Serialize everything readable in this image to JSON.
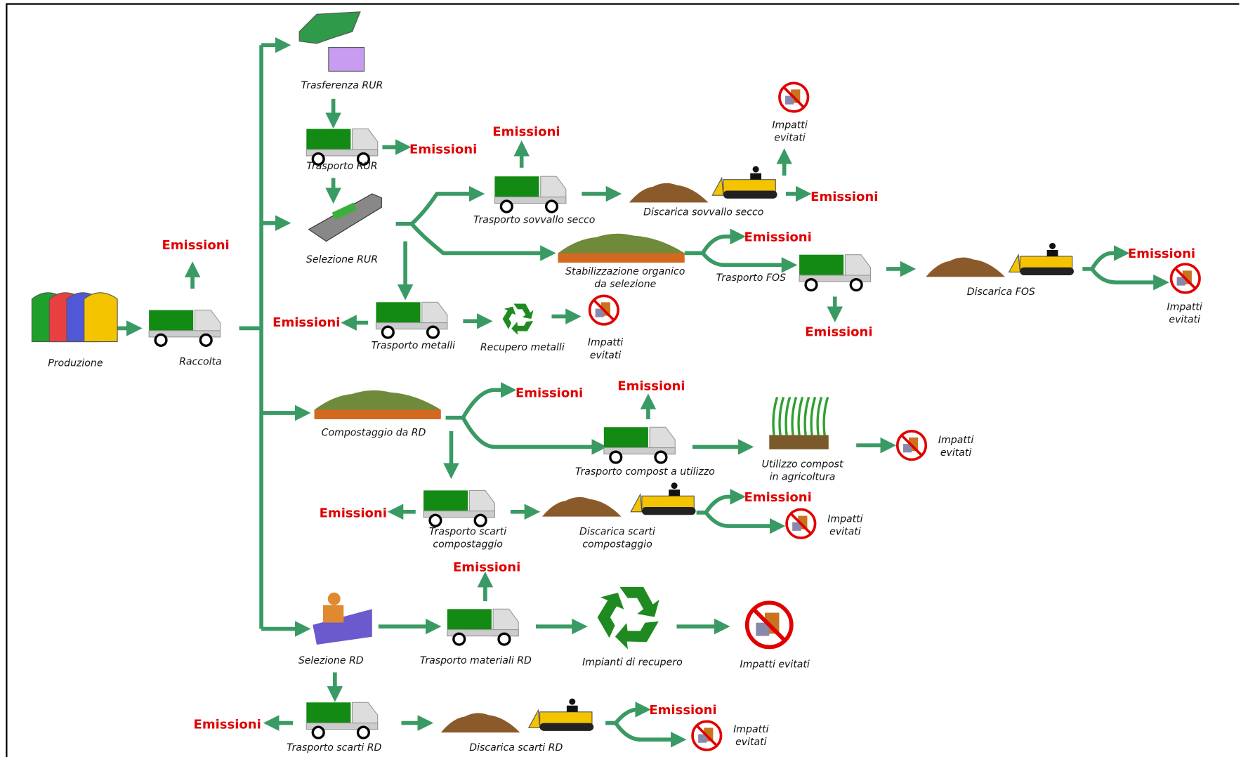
{
  "nodes": [
    [
      "Produzione"
    ],
    [
      "Raccolta"
    ],
    [
      "Trasferenza RUR"
    ],
    [
      "Trasporto RUR"
    ],
    [
      "Selezione RUR"
    ],
    [
      "Trasporto sovvallo secco"
    ],
    [
      "Discarica sovvallo secco"
    ],
    [
      "Stabilizzazione organico",
      "da selezione"
    ],
    [
      "Trasporto FOS"
    ],
    [
      "Discarica FOS"
    ],
    [
      "Trasporto metalli"
    ],
    [
      "Recupero metalli"
    ],
    [
      "Compostaggio da RD"
    ],
    [
      "Trasporto compost a utilizzo"
    ],
    [
      "Utilizzo compost",
      "in agricoltura"
    ],
    [
      "Trasporto scarti",
      "compostaggio"
    ],
    [
      "Discarica scarti",
      "compostaggio"
    ],
    [
      "Selezione RD"
    ],
    [
      "Trasporto materiali RD"
    ],
    [
      "Impianti di recupero"
    ],
    [
      "Trasporto scarti RD"
    ],
    [
      "Discarica scarti RD"
    ]
  ],
  "emissions": [
    "Emissioni",
    "Emissioni",
    "Emissioni",
    "Emissioni",
    "Emissioni",
    "Emissioni",
    "Emissioni",
    "Emissioni",
    "Emissioni",
    "Emissioni",
    "Emissioni",
    "Emissioni",
    "Emissioni",
    "Emissioni",
    "Emissioni"
  ],
  "avoided_impacts": [
    [
      "Impatti",
      "evitati"
    ],
    [
      "Impatti",
      "evitati"
    ],
    [
      "Impatti",
      "evitati"
    ],
    [
      "Impatti",
      "evitati"
    ],
    [
      "Impatti",
      "evitati"
    ],
    [
      "Impatti evitati"
    ],
    [
      "Impatti",
      "evitati"
    ]
  ]
}
